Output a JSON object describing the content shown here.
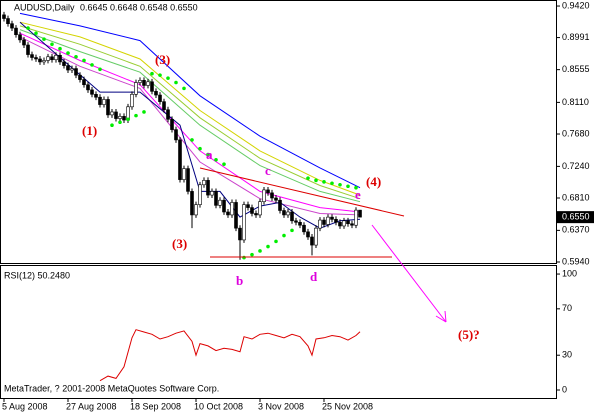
{
  "chart_data": [
    {
      "type": "candlestick",
      "title": "AUDUSD,Daily",
      "title_values": "0.6645 0.6648 0.6548 0.6550",
      "ylim": [
        0.594,
        0.9502
      ],
      "xlim": [
        -1,
        138
      ],
      "yticks": [
        {
          "value": 0.942,
          "label": "0.9420"
        },
        {
          "value": 0.8991,
          "label": "0.8991"
        },
        {
          "value": 0.8555,
          "label": "0.8555"
        },
        {
          "value": 0.811,
          "label": "0.8110"
        },
        {
          "value": 0.768,
          "label": "0.7680"
        },
        {
          "value": 0.724,
          "label": "0.7240"
        },
        {
          "value": 0.681,
          "label": "0.6810"
        },
        {
          "value": 0.637,
          "label": "0.6370"
        },
        {
          "value": 0.594,
          "label": "0.5940"
        }
      ],
      "current_price": {
        "value": 0.655,
        "label": "0.6550"
      },
      "open": [
        0.93,
        0.925,
        0.918,
        0.912,
        0.903,
        0.896,
        0.889,
        0.876,
        0.872,
        0.87,
        0.866,
        0.868,
        0.873,
        0.869,
        0.875,
        0.866,
        0.861,
        0.855,
        0.857,
        0.848,
        0.842,
        0.835,
        0.828,
        0.822,
        0.818,
        0.808,
        0.815,
        0.794,
        0.798,
        0.789,
        0.792,
        0.787,
        0.805,
        0.822,
        0.838,
        0.841,
        0.834,
        0.839,
        0.826,
        0.821,
        0.812,
        0.801,
        0.788,
        0.774,
        0.76,
        0.706,
        0.721,
        0.69,
        0.658,
        0.672,
        0.699,
        0.705,
        0.685,
        0.69,
        0.671,
        0.678,
        0.662,
        0.658,
        0.675,
        0.64,
        0.624,
        0.672,
        0.668,
        0.66,
        0.658,
        0.676,
        0.692,
        0.688,
        0.681,
        0.678,
        0.664,
        0.658,
        0.662,
        0.65,
        0.648,
        0.644,
        0.635,
        0.628,
        0.617,
        0.64,
        0.651,
        0.645,
        0.655,
        0.652,
        0.648,
        0.643,
        0.65,
        0.646,
        0.644,
        0.6645
      ],
      "high": [
        0.934,
        0.929,
        0.922,
        0.916,
        0.907,
        0.9,
        0.893,
        0.88,
        0.876,
        0.874,
        0.872,
        0.877,
        0.877,
        0.879,
        0.879,
        0.87,
        0.865,
        0.861,
        0.861,
        0.852,
        0.846,
        0.839,
        0.832,
        0.826,
        0.822,
        0.819,
        0.819,
        0.802,
        0.802,
        0.796,
        0.796,
        0.809,
        0.826,
        0.842,
        0.845,
        0.845,
        0.843,
        0.843,
        0.83,
        0.825,
        0.816,
        0.805,
        0.792,
        0.778,
        0.764,
        0.725,
        0.725,
        0.694,
        0.676,
        0.703,
        0.709,
        0.709,
        0.694,
        0.694,
        0.682,
        0.682,
        0.666,
        0.679,
        0.679,
        0.644,
        0.676,
        0.676,
        0.672,
        0.664,
        0.68,
        0.696,
        0.696,
        0.692,
        0.685,
        0.682,
        0.668,
        0.666,
        0.666,
        0.654,
        0.652,
        0.648,
        0.639,
        0.632,
        0.644,
        0.655,
        0.655,
        0.659,
        0.659,
        0.656,
        0.652,
        0.654,
        0.654,
        0.65,
        0.6685,
        0.6648
      ],
      "low": [
        0.921,
        0.914,
        0.908,
        0.899,
        0.892,
        0.885,
        0.872,
        0.868,
        0.866,
        0.862,
        0.862,
        0.864,
        0.865,
        0.865,
        0.862,
        0.857,
        0.851,
        0.851,
        0.844,
        0.838,
        0.831,
        0.824,
        0.818,
        0.814,
        0.804,
        0.804,
        0.79,
        0.79,
        0.785,
        0.785,
        0.783,
        0.783,
        0.801,
        0.818,
        0.834,
        0.83,
        0.83,
        0.822,
        0.817,
        0.808,
        0.797,
        0.784,
        0.77,
        0.756,
        0.702,
        0.702,
        0.686,
        0.64,
        0.654,
        0.668,
        0.695,
        0.681,
        0.681,
        0.667,
        0.667,
        0.658,
        0.654,
        0.654,
        0.636,
        0.597,
        0.62,
        0.664,
        0.656,
        0.654,
        0.654,
        0.672,
        0.684,
        0.677,
        0.674,
        0.66,
        0.654,
        0.654,
        0.646,
        0.644,
        0.64,
        0.631,
        0.624,
        0.603,
        0.613,
        0.636,
        0.641,
        0.641,
        0.648,
        0.644,
        0.639,
        0.639,
        0.642,
        0.64,
        0.64,
        0.6548
      ],
      "close": [
        0.925,
        0.918,
        0.912,
        0.903,
        0.896,
        0.889,
        0.876,
        0.872,
        0.87,
        0.866,
        0.868,
        0.873,
        0.869,
        0.875,
        0.866,
        0.861,
        0.855,
        0.857,
        0.848,
        0.842,
        0.835,
        0.828,
        0.822,
        0.818,
        0.808,
        0.815,
        0.794,
        0.798,
        0.789,
        0.792,
        0.787,
        0.805,
        0.822,
        0.838,
        0.841,
        0.834,
        0.839,
        0.826,
        0.821,
        0.812,
        0.801,
        0.788,
        0.774,
        0.76,
        0.706,
        0.721,
        0.69,
        0.658,
        0.672,
        0.699,
        0.705,
        0.685,
        0.69,
        0.671,
        0.678,
        0.662,
        0.658,
        0.675,
        0.64,
        0.624,
        0.672,
        0.668,
        0.66,
        0.658,
        0.676,
        0.692,
        0.688,
        0.681,
        0.678,
        0.664,
        0.658,
        0.662,
        0.65,
        0.648,
        0.644,
        0.635,
        0.628,
        0.617,
        0.64,
        0.651,
        0.645,
        0.655,
        0.652,
        0.648,
        0.643,
        0.65,
        0.646,
        0.644,
        0.6645,
        0.655
      ],
      "bull_color": "#ffffff",
      "bear_color": "#000000",
      "series": [
        {
          "color": "#0000ff",
          "x": [
            4,
            19,
            34,
            49,
            64,
            79,
            89
          ],
          "values": [
            0.932,
            0.915,
            0.895,
            0.82,
            0.765,
            0.722,
            0.695
          ]
        },
        {
          "color": "#d4d400",
          "x": [
            4,
            19,
            34,
            49,
            64,
            79,
            89
          ],
          "values": [
            0.92,
            0.9,
            0.87,
            0.8,
            0.745,
            0.705,
            0.685
          ]
        },
        {
          "color": "#9acd32",
          "x": [
            4,
            19,
            34,
            49,
            64,
            79,
            89
          ],
          "values": [
            0.915,
            0.89,
            0.86,
            0.79,
            0.735,
            0.698,
            0.68
          ]
        },
        {
          "color": "#66cc66",
          "x": [
            4,
            19,
            34,
            49,
            64,
            79,
            89
          ],
          "values": [
            0.91,
            0.88,
            0.852,
            0.78,
            0.725,
            0.69,
            0.676
          ]
        },
        {
          "color": "#ff00ff",
          "x": [
            4,
            19,
            34,
            49,
            64,
            79,
            89
          ],
          "values": [
            0.905,
            0.868,
            0.835,
            0.745,
            0.69,
            0.668,
            0.662
          ]
        },
        {
          "color": "#cc44cc",
          "x": [
            4,
            19,
            34,
            49,
            64,
            79,
            89
          ],
          "values": [
            0.9,
            0.86,
            0.83,
            0.73,
            0.68,
            0.66,
            0.658
          ]
        },
        {
          "color": "#000080",
          "x": [
            4,
            14,
            24,
            34,
            44,
            49,
            54,
            59,
            64,
            69,
            74,
            79,
            84,
            89
          ],
          "values": [
            0.92,
            0.872,
            0.825,
            0.825,
            0.78,
            0.69,
            0.69,
            0.655,
            0.67,
            0.675,
            0.655,
            0.64,
            0.65,
            0.652
          ]
        }
      ],
      "markers": {
        "color": "#00ee00",
        "x": [
          6,
          8,
          10,
          12,
          14,
          16,
          18,
          20,
          22,
          24,
          27,
          29,
          31,
          33,
          35,
          37,
          39,
          41,
          43,
          45,
          47,
          49,
          51,
          53,
          55,
          60,
          62,
          64,
          66,
          68,
          70,
          72,
          76,
          78,
          80,
          82,
          84,
          86,
          88
        ],
        "values": [
          0.912,
          0.905,
          0.897,
          0.89,
          0.884,
          0.878,
          0.873,
          0.868,
          0.862,
          0.856,
          0.78,
          0.784,
          0.788,
          0.793,
          0.798,
          0.85,
          0.848,
          0.844,
          0.838,
          0.83,
          0.76,
          0.748,
          0.74,
          0.733,
          0.727,
          0.6,
          0.604,
          0.609,
          0.615,
          0.622,
          0.63,
          0.637,
          0.708,
          0.705,
          0.703,
          0.701,
          0.699,
          0.697,
          0.695
        ]
      },
      "annotations": [
        {
          "text": "(1)",
          "color": "#dd0000"
        },
        {
          "text": "(3)",
          "color": "#dd0000"
        },
        {
          "text": "(3)",
          "color": "#dd0000"
        },
        {
          "text": "(4)",
          "color": "#dd0000"
        },
        {
          "text": "(5)?",
          "color": "#dd0000"
        },
        {
          "text": "a",
          "color": "#dd00dd"
        },
        {
          "text": "b",
          "color": "#dd00dd"
        },
        {
          "text": "c",
          "color": "#dd00dd"
        },
        {
          "text": "d",
          "color": "#dd00dd"
        },
        {
          "text": "e",
          "color": "#dd00dd"
        }
      ]
    },
    {
      "type": "line",
      "title": "RSI(12) 50.2480",
      "footnote": "MetaTrader, ? 2001-2008 MetaQuotes Software Corp.",
      "ylim": [
        -6.9,
        107.8
      ],
      "xlim": [
        -1,
        138
      ],
      "yticks": [
        100,
        70,
        30,
        0
      ],
      "xticks": [
        {
          "value": 0,
          "label": "5 Aug 2008"
        },
        {
          "value": 16,
          "label": "27 Aug 2008"
        },
        {
          "value": 32,
          "label": "18 Sep 2008"
        },
        {
          "value": 48,
          "label": "10 Oct 2008"
        },
        {
          "value": 64,
          "label": "3 Nov 2008"
        },
        {
          "value": 80,
          "label": "25 Nov 2008"
        }
      ],
      "series": [
        {
          "color": "#dd0000",
          "x": [
            24,
            26,
            28,
            30,
            32,
            33,
            35,
            37,
            39,
            41,
            43,
            45,
            47,
            48,
            49,
            51,
            53,
            55,
            57,
            59,
            60,
            62,
            64,
            66,
            68,
            70,
            72,
            74,
            76,
            77,
            78,
            80,
            82,
            84,
            86,
            88,
            89
          ],
          "values": [
            8,
            12,
            10,
            20,
            45,
            52,
            50,
            48,
            44,
            46,
            49,
            51,
            42,
            30,
            40,
            38,
            34,
            36,
            35,
            33,
            46,
            44,
            48,
            49,
            47,
            45,
            48,
            46,
            38,
            30,
            44,
            45,
            47,
            46,
            43,
            47,
            50.248
          ]
        }
      ]
    }
  ]
}
